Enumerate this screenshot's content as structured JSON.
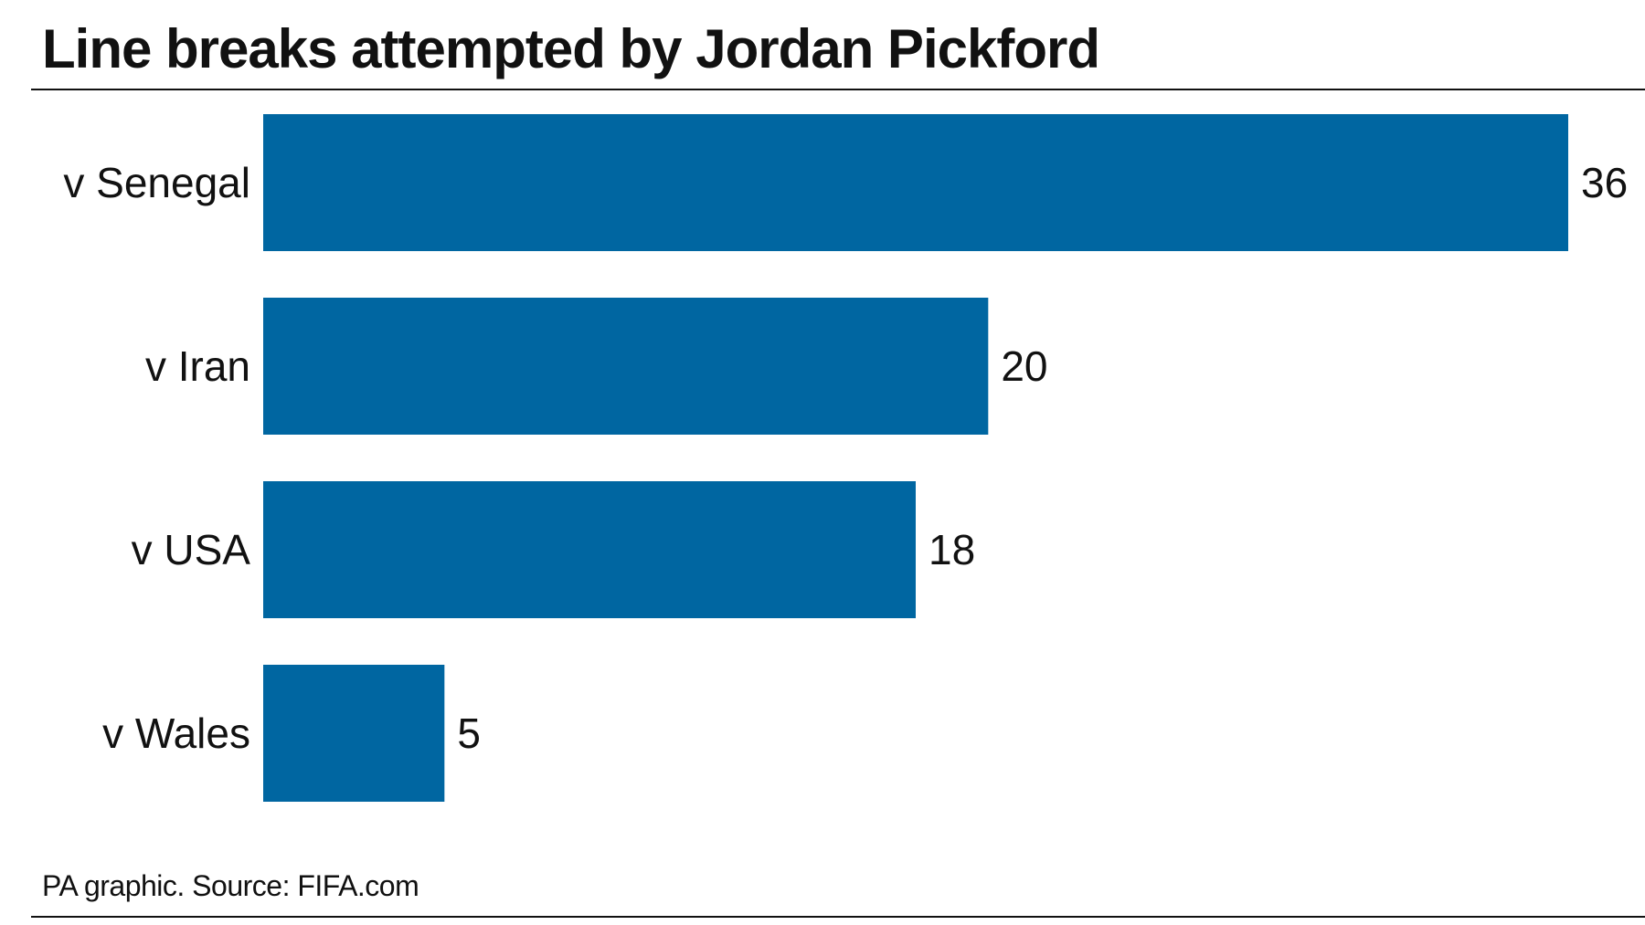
{
  "header": {
    "title": "Line breaks attempted by Jordan Pickford"
  },
  "footer": {
    "source": "PA graphic. Source: FIFA.com"
  },
  "colors": {
    "bar": "#0066a1",
    "text": "#111111"
  },
  "chart_data": {
    "type": "bar",
    "orientation": "horizontal",
    "categories": [
      "v Senegal",
      "v Iran",
      "v USA",
      "v Wales"
    ],
    "values": [
      36,
      20,
      18,
      5
    ],
    "data_labels": [
      "36",
      "20",
      "18",
      "5"
    ],
    "title": "Line breaks attempted by Jordan Pickford",
    "xlabel": "",
    "ylabel": "",
    "xlim": [
      0,
      36
    ],
    "grid": false,
    "legend": "none"
  }
}
